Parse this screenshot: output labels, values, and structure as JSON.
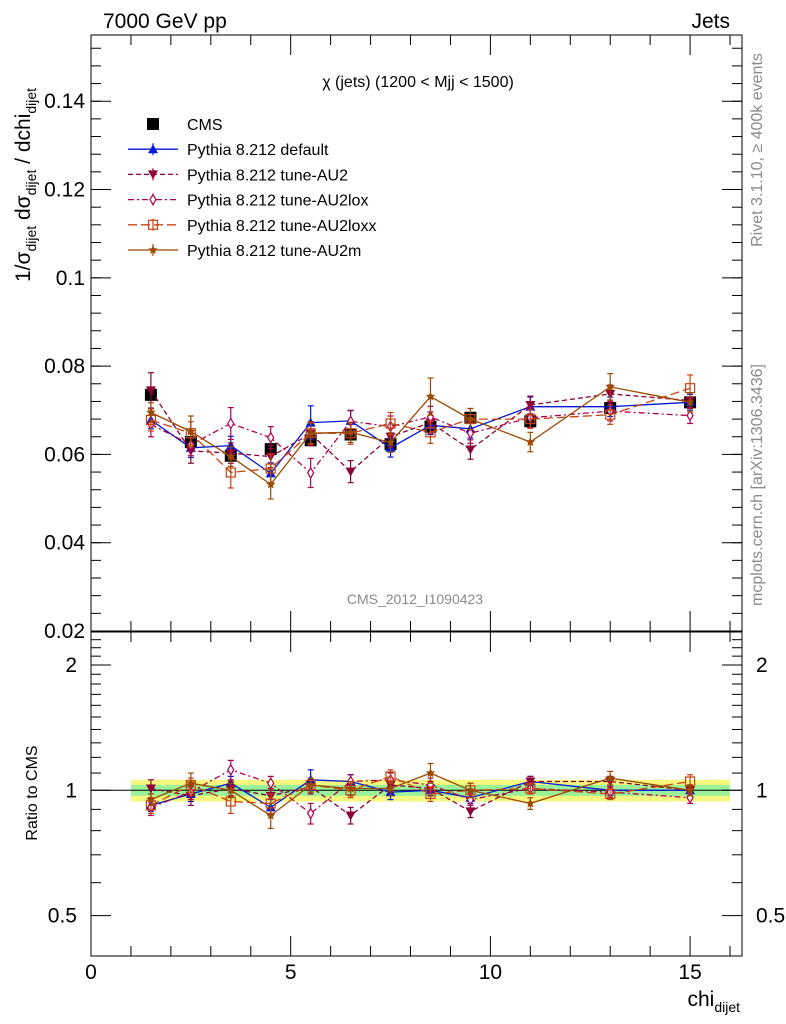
{
  "header": {
    "left": "7000 GeV pp",
    "right": "Jets",
    "side_top": "Rivet 3.1.10, ≥ 400k events",
    "side_bottom": "mcplots.cern.ch [arXiv:1306.3436]",
    "analysis_id": "CMS_2012_I1090423"
  },
  "chart_data": [
    {
      "type": "line",
      "panel": "main",
      "title": "χ (jets) (1200 < Mjj < 1500)",
      "ylabel": "1/σdijet dσdijet / dchidijet",
      "ylabel_parts": {
        "a": "1/σ",
        "sub1": "dijet",
        "b": " dσ",
        "sub2": "dijet",
        "c": " / dchi",
        "sub3": "dijet"
      },
      "xlim": [
        0,
        16.3
      ],
      "ylim": [
        0.02,
        0.155
      ],
      "y_ticks": [
        0.02,
        0.04,
        0.06,
        0.08,
        0.1,
        0.12,
        0.14
      ],
      "y_tick_labels": [
        "0.02",
        "0.04",
        "0.06",
        "0.08",
        "0.1",
        "0.12",
        "0.14"
      ],
      "legend_position": "top-left",
      "x": [
        1.5,
        2.5,
        3.5,
        4.5,
        5.5,
        6.5,
        7.5,
        8.5,
        9.5,
        11,
        13,
        15
      ],
      "series": [
        {
          "name": "CMS",
          "color": "#000000",
          "marker": "square",
          "line": "none",
          "values": [
            0.0735,
            0.0628,
            0.0597,
            0.0612,
            0.0632,
            0.0645,
            0.0623,
            0.0663,
            0.0683,
            0.0675,
            0.0705,
            0.0718
          ],
          "errors": [
            0.0012,
            0.001,
            0.001,
            0.001,
            0.001,
            0.001,
            0.001,
            0.001,
            0.001,
            0.001,
            0.001,
            0.001
          ]
        },
        {
          "name": "Pythia 8.212 default",
          "color": "#0018d9",
          "marker": "triangle-up",
          "line": "solid",
          "values": [
            0.0678,
            0.0615,
            0.062,
            0.0557,
            0.0672,
            0.0676,
            0.0615,
            0.0666,
            0.0658,
            0.0708,
            0.0708,
            0.0718
          ],
          "errors": [
            0.002,
            0.0022,
            0.0021,
            0.0024,
            0.0038,
            0.0023,
            0.0021,
            0.0021,
            0.0021,
            0.0022,
            0.0022,
            0.0018
          ]
        },
        {
          "name": "Pythia 8.212 tune-AU2",
          "color": "#8b0039",
          "marker": "triangle-down",
          "line": "dashed",
          "values": [
            0.0745,
            0.0608,
            0.0603,
            0.0595,
            0.0647,
            0.0561,
            0.064,
            0.0672,
            0.0611,
            0.0712,
            0.0737,
            0.0722
          ],
          "errors": [
            0.004,
            0.0028,
            0.0023,
            0.0025,
            0.0027,
            0.0025,
            0.0024,
            0.0024,
            0.0022,
            0.002,
            0.002,
            0.0018
          ]
        },
        {
          "name": "Pythia 8.212 tune-AU2lox",
          "color": "#b0004e",
          "marker": "diamond-open",
          "line": "dashdot",
          "values": [
            0.0668,
            0.0622,
            0.067,
            0.0638,
            0.0558,
            0.0675,
            0.0663,
            0.0685,
            0.0648,
            0.0683,
            0.0698,
            0.0688
          ],
          "errors": [
            0.0028,
            0.0025,
            0.0036,
            0.0025,
            0.0033,
            0.0025,
            0.0024,
            0.0024,
            0.0023,
            0.0022,
            0.0022,
            0.0018
          ]
        },
        {
          "name": "Pythia 8.212 tune-AU2loxx",
          "color": "#c74410",
          "marker": "square-open",
          "line": "longdash",
          "values": [
            0.0678,
            0.0648,
            0.0559,
            0.0568,
            0.0648,
            0.0648,
            0.067,
            0.065,
            0.068,
            0.068,
            0.069,
            0.075
          ],
          "errors": [
            0.0025,
            0.0026,
            0.0035,
            0.0032,
            0.0025,
            0.0025,
            0.0025,
            0.0025,
            0.0024,
            0.0021,
            0.0022,
            0.003
          ]
        },
        {
          "name": "Pythia 8.212 tune-AU2m",
          "color": "#9c4a00",
          "marker": "star",
          "line": "solid",
          "values": [
            0.0695,
            0.0652,
            0.0595,
            0.0532,
            0.0648,
            0.065,
            0.0627,
            0.0731,
            0.068,
            0.0628,
            0.0753,
            0.0718
          ],
          "errors": [
            0.0022,
            0.0035,
            0.0022,
            0.0033,
            0.0023,
            0.0023,
            0.0022,
            0.0042,
            0.0024,
            0.0022,
            0.003,
            0.0022
          ]
        }
      ]
    },
    {
      "type": "line",
      "panel": "ratio",
      "ylabel": "Ratio to CMS",
      "xlabel": "chidijet",
      "xlabel_parts": {
        "a": "chi",
        "sub": "dijet"
      },
      "xlim": [
        0,
        16.3
      ],
      "x_ticks": [
        0,
        5,
        10,
        15
      ],
      "x_tick_labels": [
        "0",
        "5",
        "10",
        "15"
      ],
      "y_scale": "log",
      "ylim": [
        0.4,
        2.4
      ],
      "y_ticks": [
        0.5,
        1,
        2
      ],
      "y_tick_labels": [
        "0.5",
        "1",
        "2"
      ],
      "band_inner": 0.03,
      "band_outer": 0.06,
      "band_colors": {
        "inner": "#9af29a",
        "outer": "#f5f77f"
      },
      "x": [
        1.5,
        2.5,
        3.5,
        4.5,
        5.5,
        6.5,
        7.5,
        8.5,
        9.5,
        11,
        13,
        15
      ],
      "series": [
        {
          "name": "Pythia 8.212 default",
          "values": [
            0.92,
            0.98,
            1.04,
            0.91,
            1.06,
            1.05,
            0.99,
            1.0,
            0.96,
            1.05,
            1.0,
            1.0
          ],
          "errors": [
            0.03,
            0.04,
            0.04,
            0.04,
            0.06,
            0.04,
            0.04,
            0.03,
            0.03,
            0.03,
            0.03,
            0.03
          ]
        },
        {
          "name": "Pythia 8.212 tune-AU2",
          "values": [
            1.01,
            0.97,
            1.01,
            0.97,
            1.02,
            0.87,
            1.03,
            1.01,
            0.89,
            1.05,
            1.05,
            1.0
          ],
          "errors": [
            0.05,
            0.05,
            0.04,
            0.04,
            0.04,
            0.04,
            0.04,
            0.04,
            0.03,
            0.03,
            0.03,
            0.03
          ]
        },
        {
          "name": "Pythia 8.212 tune-AU2lox",
          "values": [
            0.91,
            0.99,
            1.12,
            1.04,
            0.88,
            1.05,
            1.06,
            1.03,
            0.95,
            1.01,
            0.99,
            0.96
          ],
          "errors": [
            0.04,
            0.04,
            0.06,
            0.04,
            0.05,
            0.04,
            0.04,
            0.04,
            0.03,
            0.03,
            0.03,
            0.03
          ]
        },
        {
          "name": "Pythia 8.212 tune-AU2loxx",
          "values": [
            0.92,
            1.03,
            0.94,
            0.93,
            1.03,
            1.0,
            1.08,
            0.98,
            1.0,
            1.01,
            0.98,
            1.05
          ],
          "errors": [
            0.04,
            0.04,
            0.06,
            0.05,
            0.04,
            0.04,
            0.04,
            0.04,
            0.04,
            0.03,
            0.03,
            0.04
          ]
        },
        {
          "name": "Pythia 8.212 tune-AU2m",
          "values": [
            0.95,
            1.04,
            1.0,
            0.87,
            1.03,
            1.01,
            1.01,
            1.1,
            1.0,
            0.93,
            1.07,
            1.0
          ],
          "errors": [
            0.03,
            0.06,
            0.04,
            0.06,
            0.04,
            0.04,
            0.04,
            0.06,
            0.04,
            0.03,
            0.04,
            0.03
          ]
        }
      ]
    }
  ]
}
